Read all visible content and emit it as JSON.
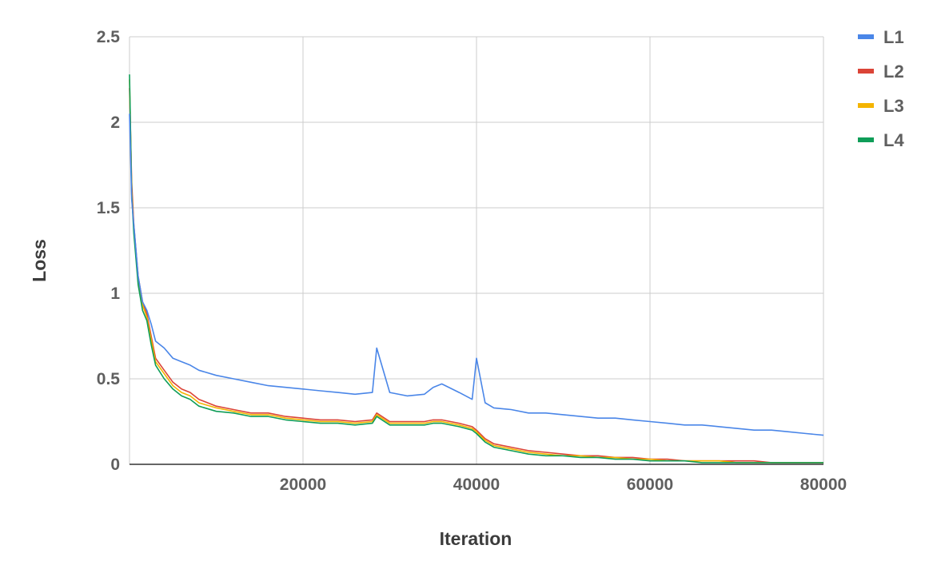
{
  "chart_data": {
    "type": "line",
    "title": "",
    "xlabel": "Iteration",
    "ylabel": "Loss",
    "xlim": [
      0,
      80000
    ],
    "ylim": [
      0,
      2.5
    ],
    "x_ticks": [
      20000,
      40000,
      60000,
      80000
    ],
    "y_ticks": [
      0,
      0.5,
      1,
      1.5,
      2,
      2.5
    ],
    "x_tick_labels": [
      "20000",
      "40000",
      "60000",
      "80000"
    ],
    "y_tick_labels": [
      "0",
      "0.5",
      "1",
      "1.5",
      "2",
      "2.5"
    ],
    "grid": true,
    "legend_position": "top-right",
    "x": [
      0,
      250,
      500,
      1000,
      1500,
      2000,
      2500,
      3000,
      4000,
      5000,
      6000,
      7000,
      8000,
      10000,
      12000,
      14000,
      16000,
      18000,
      20000,
      22000,
      24000,
      26000,
      28000,
      28500,
      30000,
      32000,
      34000,
      35000,
      36000,
      38000,
      39500,
      40000,
      41000,
      42000,
      44000,
      46000,
      48000,
      50000,
      52000,
      54000,
      56000,
      58000,
      60000,
      62000,
      64000,
      66000,
      68000,
      70000,
      72000,
      74000,
      76000,
      78000,
      80000
    ],
    "series": [
      {
        "name": "L1",
        "color": "#4a86e8",
        "values": [
          2.05,
          1.55,
          1.4,
          1.1,
          0.95,
          0.9,
          0.82,
          0.72,
          0.68,
          0.62,
          0.6,
          0.58,
          0.55,
          0.52,
          0.5,
          0.48,
          0.46,
          0.45,
          0.44,
          0.43,
          0.42,
          0.41,
          0.42,
          0.68,
          0.42,
          0.4,
          0.41,
          0.45,
          0.47,
          0.42,
          0.38,
          0.62,
          0.36,
          0.33,
          0.32,
          0.3,
          0.3,
          0.29,
          0.28,
          0.27,
          0.27,
          0.26,
          0.25,
          0.24,
          0.23,
          0.23,
          0.22,
          0.21,
          0.2,
          0.2,
          0.19,
          0.18,
          0.17
        ]
      },
      {
        "name": "L2",
        "color": "#db4437",
        "values": [
          2.2,
          1.65,
          1.4,
          1.1,
          0.95,
          0.88,
          0.75,
          0.62,
          0.55,
          0.48,
          0.44,
          0.42,
          0.38,
          0.34,
          0.32,
          0.3,
          0.3,
          0.28,
          0.27,
          0.26,
          0.26,
          0.25,
          0.26,
          0.3,
          0.25,
          0.25,
          0.25,
          0.26,
          0.26,
          0.24,
          0.22,
          0.2,
          0.15,
          0.12,
          0.1,
          0.08,
          0.07,
          0.06,
          0.05,
          0.05,
          0.04,
          0.04,
          0.03,
          0.03,
          0.02,
          0.02,
          0.02,
          0.02,
          0.02,
          0.01,
          0.01,
          0.01,
          0.01
        ]
      },
      {
        "name": "L3",
        "color": "#f4b400",
        "values": [
          2.25,
          1.6,
          1.38,
          1.08,
          0.93,
          0.86,
          0.73,
          0.6,
          0.53,
          0.46,
          0.42,
          0.4,
          0.36,
          0.33,
          0.31,
          0.29,
          0.29,
          0.27,
          0.26,
          0.25,
          0.25,
          0.24,
          0.25,
          0.29,
          0.24,
          0.24,
          0.24,
          0.25,
          0.25,
          0.23,
          0.21,
          0.19,
          0.14,
          0.11,
          0.09,
          0.07,
          0.06,
          0.05,
          0.05,
          0.04,
          0.04,
          0.03,
          0.03,
          0.02,
          0.02,
          0.02,
          0.02,
          0.01,
          0.01,
          0.01,
          0.01,
          0.01,
          0.01
        ]
      },
      {
        "name": "L4",
        "color": "#0f9d58",
        "values": [
          2.28,
          1.58,
          1.35,
          1.05,
          0.9,
          0.84,
          0.7,
          0.58,
          0.5,
          0.44,
          0.4,
          0.38,
          0.34,
          0.31,
          0.3,
          0.28,
          0.28,
          0.26,
          0.25,
          0.24,
          0.24,
          0.23,
          0.24,
          0.28,
          0.23,
          0.23,
          0.23,
          0.24,
          0.24,
          0.22,
          0.2,
          0.18,
          0.13,
          0.1,
          0.08,
          0.06,
          0.05,
          0.05,
          0.04,
          0.04,
          0.03,
          0.03,
          0.02,
          0.02,
          0.02,
          0.01,
          0.01,
          0.01,
          0.01,
          0.01,
          0.01,
          0.01,
          0.01
        ]
      }
    ]
  }
}
